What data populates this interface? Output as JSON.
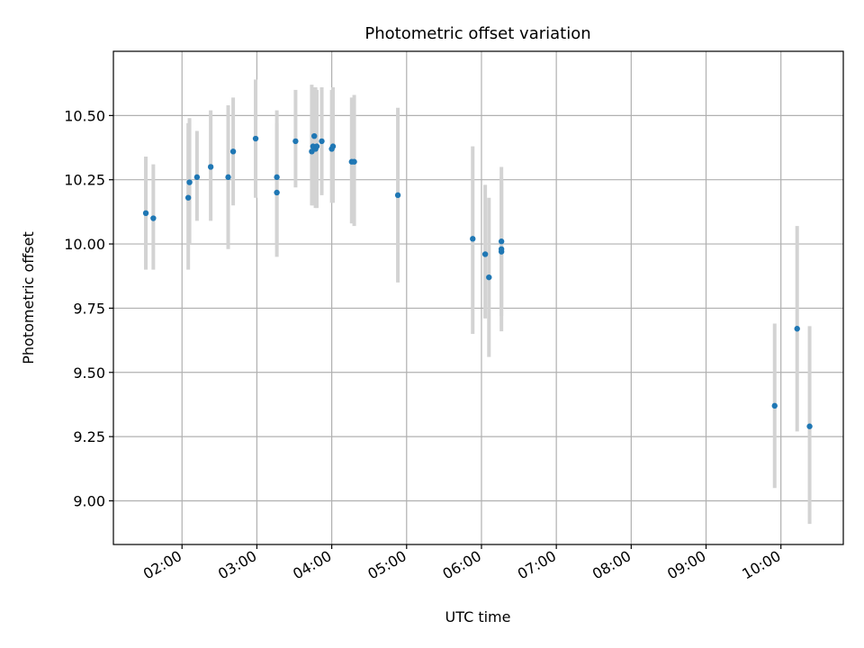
{
  "chart_data": {
    "type": "scatter",
    "title": "Photometric offset variation",
    "xlabel": "UTC time",
    "ylabel": "Photometric offset",
    "xlim": [
      "01:05",
      "10:50"
    ],
    "ylim": [
      8.83,
      10.75
    ],
    "grid": true,
    "xticks": [
      "02:00",
      "03:00",
      "04:00",
      "05:00",
      "06:00",
      "07:00",
      "08:00",
      "09:00",
      "10:00"
    ],
    "yticks": [
      "9.00",
      "9.25",
      "9.50",
      "9.75",
      "10.00",
      "10.25",
      "10.50"
    ],
    "point_color": "#1f77b4",
    "errorbar_color": "#d3d3d3",
    "points": [
      {
        "t": "01:31",
        "y": 10.12,
        "lo": 9.9,
        "hi": 10.34
      },
      {
        "t": "01:37",
        "y": 10.1,
        "lo": 9.9,
        "hi": 10.31
      },
      {
        "t": "02:05",
        "y": 10.18,
        "lo": 9.9,
        "hi": 10.47
      },
      {
        "t": "02:06",
        "y": 10.24,
        "lo": 10.0,
        "hi": 10.49
      },
      {
        "t": "02:12",
        "y": 10.26,
        "lo": 10.09,
        "hi": 10.44
      },
      {
        "t": "02:23",
        "y": 10.3,
        "lo": 10.09,
        "hi": 10.52
      },
      {
        "t": "02:37",
        "y": 10.26,
        "lo": 9.98,
        "hi": 10.54
      },
      {
        "t": "02:41",
        "y": 10.36,
        "lo": 10.15,
        "hi": 10.57
      },
      {
        "t": "02:59",
        "y": 10.41,
        "lo": 10.18,
        "hi": 10.64
      },
      {
        "t": "03:16",
        "y": 10.26,
        "lo": 10.0,
        "hi": 10.47
      },
      {
        "t": "03:16",
        "y": 10.2,
        "lo": 9.95,
        "hi": 10.52
      },
      {
        "t": "03:31",
        "y": 10.4,
        "lo": 10.22,
        "hi": 10.6
      },
      {
        "t": "03:44",
        "y": 10.36,
        "lo": 10.15,
        "hi": 10.62
      },
      {
        "t": "03:45",
        "y": 10.38,
        "lo": 10.15,
        "hi": 10.6
      },
      {
        "t": "03:46",
        "y": 10.42,
        "lo": 10.2,
        "hi": 10.61
      },
      {
        "t": "03:47",
        "y": 10.37,
        "lo": 10.14,
        "hi": 10.61
      },
      {
        "t": "03:48",
        "y": 10.38,
        "lo": 10.14,
        "hi": 10.6
      },
      {
        "t": "03:52",
        "y": 10.4,
        "lo": 10.19,
        "hi": 10.61
      },
      {
        "t": "04:00",
        "y": 10.37,
        "lo": 10.16,
        "hi": 10.6
      },
      {
        "t": "04:01",
        "y": 10.38,
        "lo": 10.16,
        "hi": 10.61
      },
      {
        "t": "04:16",
        "y": 10.32,
        "lo": 10.08,
        "hi": 10.57
      },
      {
        "t": "04:18",
        "y": 10.32,
        "lo": 10.07,
        "hi": 10.58
      },
      {
        "t": "04:53",
        "y": 10.19,
        "lo": 9.85,
        "hi": 10.53
      },
      {
        "t": "05:53",
        "y": 10.02,
        "lo": 9.65,
        "hi": 10.38
      },
      {
        "t": "06:03",
        "y": 9.96,
        "lo": 9.71,
        "hi": 10.23
      },
      {
        "t": "06:06",
        "y": 9.87,
        "lo": 9.56,
        "hi": 10.18
      },
      {
        "t": "06:16",
        "y": 10.01,
        "lo": 9.75,
        "hi": 10.26
      },
      {
        "t": "06:16",
        "y": 9.98,
        "lo": 9.72,
        "hi": 10.24
      },
      {
        "t": "06:16",
        "y": 9.97,
        "lo": 9.66,
        "hi": 10.3
      },
      {
        "t": "09:55",
        "y": 9.37,
        "lo": 9.05,
        "hi": 9.69
      },
      {
        "t": "10:13",
        "y": 9.67,
        "lo": 9.27,
        "hi": 10.07
      },
      {
        "t": "10:23",
        "y": 9.29,
        "lo": 8.91,
        "hi": 9.68
      }
    ]
  }
}
